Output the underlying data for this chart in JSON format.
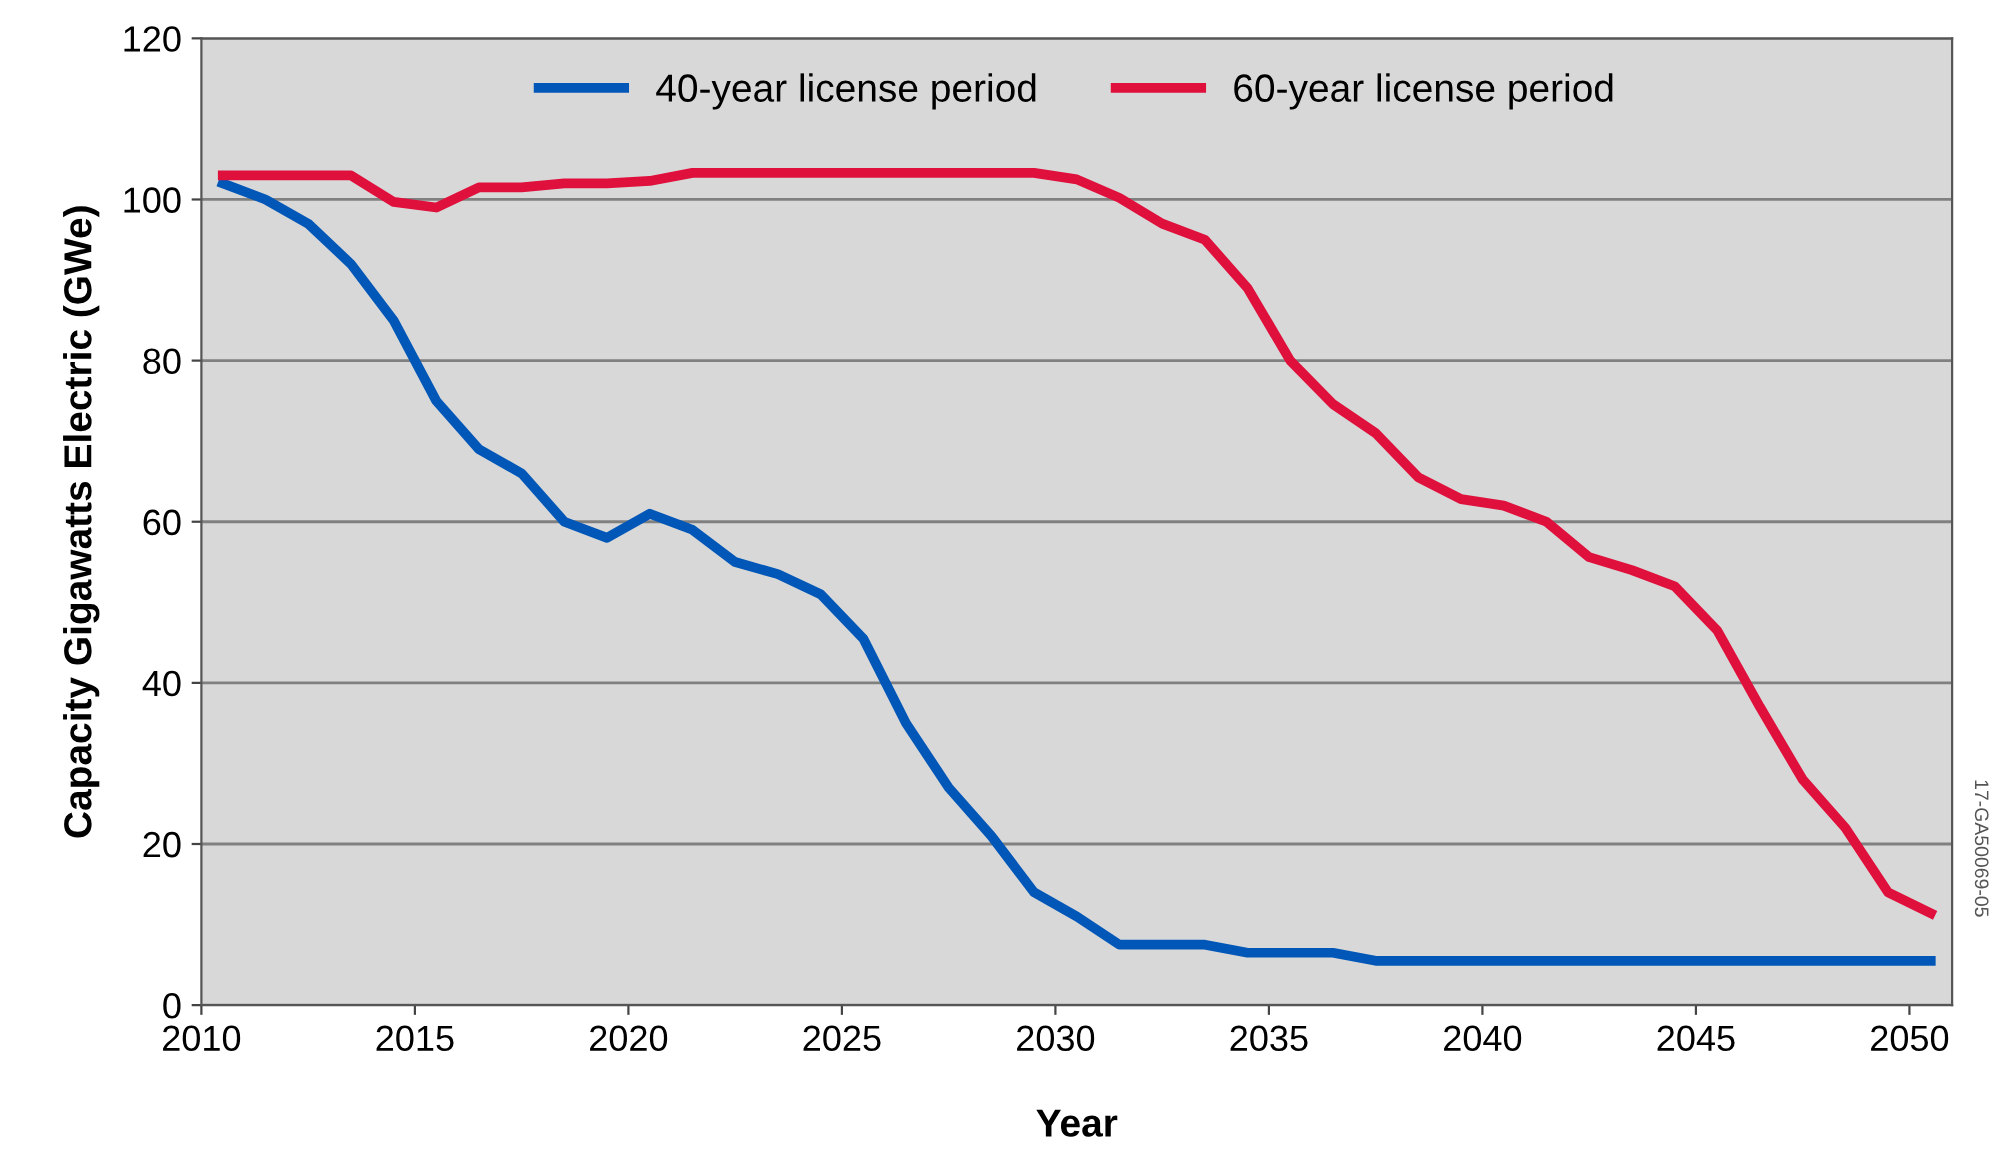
{
  "chart_data": {
    "type": "line",
    "xlabel": "Year",
    "ylabel": "Capacity Gigawatts Electric (GWe)",
    "x": [
      2010.5,
      2011.5,
      2012.5,
      2013.5,
      2014.5,
      2015.5,
      2016.5,
      2017.5,
      2018.5,
      2019.5,
      2020.5,
      2021.5,
      2022.5,
      2023.5,
      2024.5,
      2025.5,
      2026.5,
      2027.5,
      2028.5,
      2029.5,
      2030.5,
      2031.5,
      2032.5,
      2033.5,
      2034.5,
      2035.5,
      2036.5,
      2037.5,
      2038.5,
      2039.5,
      2040.5,
      2041.5,
      2042.5,
      2043.5,
      2044.5,
      2045.5,
      2046.5,
      2047.5,
      2048.5,
      2049.5,
      2050.5
    ],
    "series": [
      {
        "name": "40-year license period",
        "color": "#0057b8",
        "values": [
          102,
          100,
          97,
          92,
          85,
          75,
          69,
          66,
          60,
          58,
          61,
          59,
          55,
          53.5,
          51,
          45.5,
          35,
          27,
          21,
          14,
          11,
          7.5,
          7.5,
          7.5,
          6.5,
          6.5,
          6.5,
          5.5,
          5.5,
          5.5,
          5.5,
          5.5,
          5.5,
          5.5,
          5.5,
          5.5,
          5.5,
          5.5,
          5.5,
          5.5,
          5.5
        ]
      },
      {
        "name": "60-year license period",
        "color": "#e0103c",
        "values": [
          103,
          103,
          103,
          103,
          99.7,
          99,
          101.5,
          101.5,
          102,
          102,
          102.3,
          103.3,
          103.3,
          103.3,
          103.3,
          103.3,
          103.3,
          103.3,
          103.3,
          103.3,
          102.5,
          100.2,
          97,
          95,
          89,
          80,
          74.6,
          71,
          65.5,
          62.8,
          62,
          60,
          55.6,
          54,
          52,
          46.5,
          37,
          28,
          22,
          14,
          11.4
        ]
      }
    ],
    "xlim": [
      2010,
      2051
    ],
    "ylim": [
      0,
      120
    ],
    "xticks": [
      2010,
      2015,
      2020,
      2025,
      2030,
      2035,
      2040,
      2045,
      2050
    ],
    "yticks": [
      0,
      20,
      40,
      60,
      80,
      100,
      120
    ],
    "grid": "y",
    "legend": "top",
    "line_style": "solid",
    "marker": "none",
    "annotations": [
      "17-GA50069-05"
    ]
  }
}
